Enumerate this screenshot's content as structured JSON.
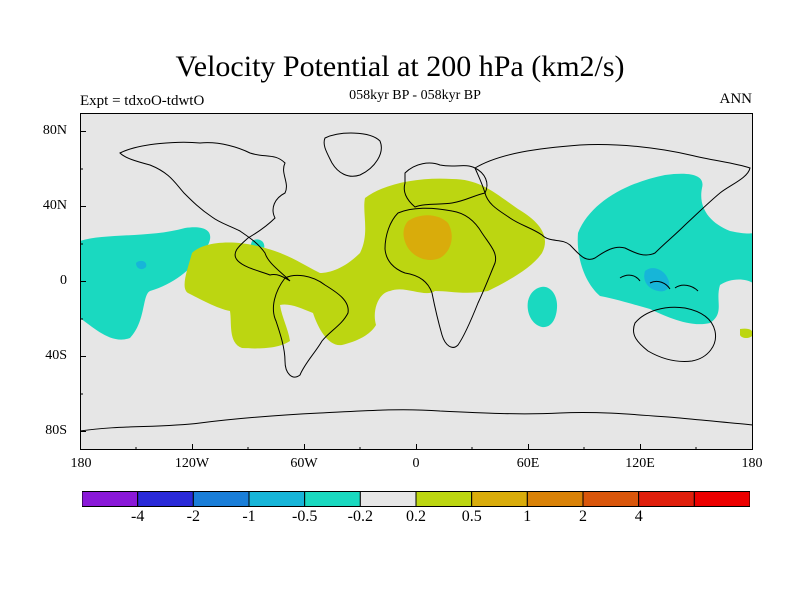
{
  "title": "Velocity Potential at 200 hPa (km2/s)",
  "subtitle": "058kyr BP - 058kyr BP",
  "left_label": "Expt = tdxoO-tdwtO",
  "right_label": "ANN",
  "map": {
    "background_color": "#e6e6e6",
    "lat_ticks": [
      "80N",
      "40N",
      "0",
      "40S",
      "80S"
    ],
    "lon_ticks": [
      "180",
      "120W",
      "60W",
      "0",
      "60E",
      "120E",
      "180"
    ]
  },
  "colorbar": {
    "colors": [
      "#8a19d8",
      "#2a2ad8",
      "#1a7ed8",
      "#17b5d8",
      "#1ad9c0",
      "#e6e6e6",
      "#bcd611",
      "#d9ac0b",
      "#d98208",
      "#d9560b",
      "#e01f0c",
      "#ec0000"
    ],
    "labels": [
      "-4",
      "-2",
      "-1",
      "-0.5",
      "-0.2",
      "0.2",
      "0.5",
      "1",
      "2",
      "4"
    ]
  },
  "regions": {
    "cyan": "#1ad9c0",
    "yellow_green": "#bcd611",
    "gold": "#d9ac0b",
    "light_blue": "#17b5d8"
  }
}
